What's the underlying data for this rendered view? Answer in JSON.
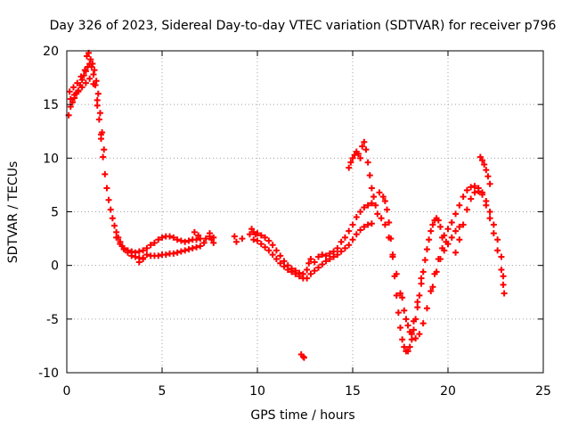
{
  "chart_data": {
    "type": "scatter",
    "title": "Day 326 of 2023, Sidereal Day-to-day VTEC variation (SDTVAR) for receiver p796",
    "xlabel": "GPS time / hours",
    "ylabel": "SDTVAR / TECUs",
    "xlim": [
      0,
      25
    ],
    "ylim": [
      -10,
      20
    ],
    "xticks": [
      0,
      5,
      10,
      15,
      20,
      25
    ],
    "yticks": [
      -10,
      -5,
      0,
      5,
      10,
      15,
      20
    ],
    "xtick_labels": [
      "0",
      "5",
      "10",
      "15",
      "20",
      "25"
    ],
    "ytick_labels": [
      "-10",
      "-5",
      "0",
      "5",
      "10",
      "15",
      "20"
    ],
    "grid": true,
    "marker": "+",
    "series": [
      {
        "name": "p796",
        "color": "#ff0000",
        "points": [
          [
            0.1,
            14.0
          ],
          [
            0.2,
            14.8
          ],
          [
            0.3,
            15.2
          ],
          [
            0.4,
            15.6
          ],
          [
            0.5,
            16.0
          ],
          [
            0.6,
            16.3
          ],
          [
            0.7,
            16.8
          ],
          [
            0.8,
            17.3
          ],
          [
            0.9,
            17.7
          ],
          [
            1.0,
            18.1
          ],
          [
            1.1,
            18.5
          ],
          [
            1.2,
            18.8
          ],
          [
            1.3,
            18.5
          ],
          [
            1.4,
            17.8
          ],
          [
            1.5,
            16.8
          ],
          [
            1.6,
            15.4
          ],
          [
            1.7,
            13.6
          ],
          [
            1.8,
            11.8
          ],
          [
            1.9,
            10.1
          ],
          [
            2.0,
            8.5
          ],
          [
            2.1,
            7.2
          ],
          [
            2.2,
            6.1
          ],
          [
            2.3,
            5.2
          ],
          [
            2.4,
            4.4
          ],
          [
            2.5,
            3.7
          ],
          [
            2.6,
            3.1
          ],
          [
            2.7,
            2.6
          ],
          [
            2.8,
            2.2
          ],
          [
            2.9,
            1.8
          ],
          [
            3.0,
            1.5
          ],
          [
            3.2,
            1.2
          ],
          [
            3.4,
            0.9
          ],
          [
            3.6,
            0.8
          ],
          [
            3.8,
            0.7
          ],
          [
            4.0,
            0.7
          ],
          [
            0.15,
            16.2
          ],
          [
            0.35,
            16.6
          ],
          [
            0.55,
            17.0
          ],
          [
            0.75,
            17.6
          ],
          [
            0.95,
            18.2
          ],
          [
            1.05,
            19.5
          ],
          [
            1.15,
            19.8
          ],
          [
            1.25,
            19.2
          ],
          [
            1.35,
            18.8
          ],
          [
            1.45,
            18.2
          ],
          [
            1.55,
            17.2
          ],
          [
            1.65,
            16.0
          ],
          [
            1.75,
            14.2
          ],
          [
            1.85,
            12.4
          ],
          [
            1.95,
            10.8
          ],
          [
            0.2,
            15.5
          ],
          [
            0.4,
            15.9
          ],
          [
            0.6,
            16.2
          ],
          [
            0.8,
            16.6
          ],
          [
            1.0,
            17.0
          ],
          [
            1.2,
            17.4
          ],
          [
            1.4,
            16.9
          ],
          [
            1.6,
            14.9
          ],
          [
            1.8,
            12.2
          ],
          [
            2.6,
            2.6
          ],
          [
            2.8,
            2.0
          ],
          [
            3.0,
            1.6
          ],
          [
            3.2,
            1.4
          ],
          [
            3.4,
            1.3
          ],
          [
            3.6,
            1.2
          ],
          [
            3.8,
            1.3
          ],
          [
            4.0,
            1.4
          ],
          [
            3.8,
            0.3
          ],
          [
            4.0,
            0.6
          ],
          [
            4.2,
            1.0
          ],
          [
            4.4,
            0.9
          ],
          [
            4.6,
            0.9
          ],
          [
            4.8,
            0.9
          ],
          [
            5.0,
            1.0
          ],
          [
            5.2,
            1.0
          ],
          [
            5.4,
            1.1
          ],
          [
            5.6,
            1.1
          ],
          [
            5.8,
            1.2
          ],
          [
            6.0,
            1.3
          ],
          [
            6.2,
            1.4
          ],
          [
            6.4,
            1.5
          ],
          [
            6.6,
            1.6
          ],
          [
            6.8,
            1.7
          ],
          [
            7.0,
            1.8
          ],
          [
            7.2,
            2.1
          ],
          [
            4.2,
            1.6
          ],
          [
            4.4,
            1.9
          ],
          [
            4.6,
            2.1
          ],
          [
            4.8,
            2.4
          ],
          [
            5.0,
            2.6
          ],
          [
            5.2,
            2.7
          ],
          [
            5.4,
            2.7
          ],
          [
            5.6,
            2.6
          ],
          [
            5.8,
            2.4
          ],
          [
            6.0,
            2.3
          ],
          [
            6.2,
            2.2
          ],
          [
            6.4,
            2.3
          ],
          [
            6.6,
            2.4
          ],
          [
            6.8,
            2.4
          ],
          [
            7.0,
            2.5
          ],
          [
            6.7,
            3.1
          ],
          [
            6.9,
            2.8
          ],
          [
            7.3,
            2.5
          ],
          [
            7.5,
            2.7
          ],
          [
            7.6,
            2.4
          ],
          [
            7.7,
            2.6
          ],
          [
            7.5,
            3.0
          ],
          [
            7.7,
            2.1
          ],
          [
            8.8,
            2.7
          ],
          [
            8.9,
            2.2
          ],
          [
            9.2,
            2.5
          ],
          [
            9.6,
            2.9
          ],
          [
            9.7,
            3.4
          ],
          [
            9.8,
            3.1
          ],
          [
            9.9,
            2.9
          ],
          [
            10.0,
            3.0
          ],
          [
            10.2,
            2.8
          ],
          [
            10.4,
            2.6
          ],
          [
            10.6,
            2.3
          ],
          [
            10.8,
            1.9
          ],
          [
            11.0,
            1.4
          ],
          [
            11.2,
            0.9
          ],
          [
            11.4,
            0.4
          ],
          [
            11.6,
            0.0
          ],
          [
            11.8,
            -0.3
          ],
          [
            12.0,
            -0.5
          ],
          [
            12.2,
            -0.7
          ],
          [
            12.4,
            -0.8
          ],
          [
            9.8,
            2.4
          ],
          [
            10.0,
            2.3
          ],
          [
            10.2,
            2.0
          ],
          [
            10.4,
            1.7
          ],
          [
            10.6,
            1.4
          ],
          [
            10.8,
            1.0
          ],
          [
            11.0,
            0.6
          ],
          [
            11.2,
            0.2
          ],
          [
            11.4,
            -0.1
          ],
          [
            11.6,
            -0.4
          ],
          [
            11.8,
            -0.6
          ],
          [
            12.0,
            -0.8
          ],
          [
            12.2,
            -1.0
          ],
          [
            12.4,
            -1.2
          ],
          [
            12.6,
            -1.2
          ],
          [
            12.3,
            -8.3
          ],
          [
            12.4,
            -8.5
          ],
          [
            12.45,
            -8.6
          ],
          [
            12.6,
            -0.4
          ],
          [
            12.7,
            0.2
          ],
          [
            12.8,
            0.6
          ],
          [
            13.0,
            0.3
          ],
          [
            13.2,
            0.8
          ],
          [
            13.4,
            1.0
          ],
          [
            13.6,
            0.9
          ],
          [
            13.8,
            1.1
          ],
          [
            14.0,
            1.3
          ],
          [
            14.2,
            1.6
          ],
          [
            12.8,
            -0.8
          ],
          [
            13.0,
            -0.5
          ],
          [
            13.2,
            -0.2
          ],
          [
            13.4,
            0.1
          ],
          [
            13.6,
            0.4
          ],
          [
            13.8,
            0.6
          ],
          [
            14.0,
            0.8
          ],
          [
            14.2,
            1.0
          ],
          [
            14.4,
            1.3
          ],
          [
            14.6,
            1.6
          ],
          [
            14.4,
            2.2
          ],
          [
            14.6,
            2.6
          ],
          [
            14.8,
            3.2
          ],
          [
            15.0,
            3.8
          ],
          [
            15.2,
            4.5
          ],
          [
            15.4,
            5.0
          ],
          [
            15.6,
            5.4
          ],
          [
            15.8,
            5.6
          ],
          [
            16.0,
            5.8
          ],
          [
            16.2,
            5.6
          ],
          [
            14.8,
            1.9
          ],
          [
            15.0,
            2.4
          ],
          [
            15.2,
            2.9
          ],
          [
            15.4,
            3.3
          ],
          [
            15.6,
            3.6
          ],
          [
            15.8,
            3.8
          ],
          [
            16.0,
            3.9
          ],
          [
            14.8,
            9.1
          ],
          [
            14.9,
            9.6
          ],
          [
            15.0,
            10.0
          ],
          [
            15.1,
            10.3
          ],
          [
            15.2,
            10.6
          ],
          [
            15.3,
            10.4
          ],
          [
            15.4,
            10.0
          ],
          [
            15.5,
            11.1
          ],
          [
            15.6,
            11.5
          ],
          [
            15.7,
            10.8
          ],
          [
            15.8,
            9.6
          ],
          [
            15.9,
            8.4
          ],
          [
            16.0,
            7.2
          ],
          [
            16.1,
            6.4
          ],
          [
            16.4,
            6.8
          ],
          [
            16.6,
            6.4
          ],
          [
            16.7,
            6.0
          ],
          [
            16.8,
            5.2
          ],
          [
            16.9,
            4.0
          ],
          [
            17.0,
            2.5
          ],
          [
            17.1,
            0.8
          ],
          [
            17.2,
            -1.0
          ],
          [
            17.3,
            -2.8
          ],
          [
            17.4,
            -4.4
          ],
          [
            17.5,
            -5.8
          ],
          [
            17.6,
            -6.9
          ],
          [
            17.7,
            -7.6
          ],
          [
            17.8,
            -8.0
          ],
          [
            17.9,
            -8.0
          ],
          [
            18.0,
            -7.6
          ],
          [
            18.1,
            -6.9
          ],
          [
            18.2,
            -6.0
          ],
          [
            18.3,
            -5.0
          ],
          [
            18.4,
            -3.9
          ],
          [
            18.5,
            -2.8
          ],
          [
            18.6,
            -1.7
          ],
          [
            18.7,
            -0.6
          ],
          [
            18.8,
            0.5
          ],
          [
            18.9,
            1.5
          ],
          [
            19.0,
            2.4
          ],
          [
            19.1,
            3.2
          ],
          [
            19.2,
            3.8
          ],
          [
            19.3,
            4.2
          ],
          [
            19.4,
            4.4
          ],
          [
            19.5,
            4.2
          ],
          [
            19.6,
            3.6
          ],
          [
            19.7,
            2.6
          ],
          [
            16.3,
            4.8
          ],
          [
            16.5,
            4.4
          ],
          [
            16.7,
            3.8
          ],
          [
            16.9,
            2.6
          ],
          [
            17.1,
            1.0
          ],
          [
            17.3,
            -0.8
          ],
          [
            17.5,
            -2.6
          ],
          [
            17.7,
            -4.2
          ],
          [
            17.9,
            -5.6
          ],
          [
            18.1,
            -6.4
          ],
          [
            18.3,
            -6.8
          ],
          [
            18.5,
            -6.4
          ],
          [
            18.7,
            -5.4
          ],
          [
            18.9,
            -4.0
          ],
          [
            19.1,
            -2.4
          ],
          [
            19.3,
            -0.8
          ],
          [
            19.5,
            0.6
          ],
          [
            19.7,
            1.6
          ],
          [
            19.9,
            2.2
          ],
          [
            17.6,
            -3.0
          ],
          [
            17.8,
            -5.0
          ],
          [
            18.0,
            -6.2
          ],
          [
            18.2,
            -5.2
          ],
          [
            18.4,
            -3.4
          ],
          [
            18.6,
            -1.2
          ],
          [
            19.2,
            -2.0
          ],
          [
            19.4,
            -0.6
          ],
          [
            19.6,
            0.6
          ],
          [
            19.8,
            1.4
          ],
          [
            20.0,
            2.0
          ],
          [
            20.2,
            2.6
          ],
          [
            20.4,
            3.2
          ],
          [
            20.6,
            3.6
          ],
          [
            19.8,
            2.8
          ],
          [
            20.0,
            3.4
          ],
          [
            20.2,
            4.0
          ],
          [
            20.4,
            4.8
          ],
          [
            20.6,
            5.6
          ],
          [
            20.8,
            6.4
          ],
          [
            21.0,
            7.0
          ],
          [
            21.2,
            7.3
          ],
          [
            21.4,
            7.4
          ],
          [
            21.6,
            7.2
          ],
          [
            21.8,
            6.8
          ],
          [
            22.0,
            6.0
          ],
          [
            22.2,
            5.0
          ],
          [
            22.4,
            3.8
          ],
          [
            22.6,
            2.4
          ],
          [
            22.8,
            0.8
          ],
          [
            22.9,
            -1.0
          ],
          [
            22.95,
            -2.6
          ],
          [
            20.4,
            1.2
          ],
          [
            20.6,
            2.4
          ],
          [
            20.8,
            3.8
          ],
          [
            21.0,
            5.2
          ],
          [
            21.2,
            6.2
          ],
          [
            21.4,
            6.8
          ],
          [
            21.6,
            6.9
          ],
          [
            21.8,
            6.6
          ],
          [
            22.0,
            5.6
          ],
          [
            22.2,
            4.4
          ],
          [
            22.4,
            3.0
          ],
          [
            22.6,
            1.4
          ],
          [
            22.8,
            -0.4
          ],
          [
            22.9,
            -1.8
          ],
          [
            21.7,
            10.1
          ],
          [
            21.8,
            9.8
          ],
          [
            21.9,
            9.4
          ],
          [
            22.0,
            8.9
          ],
          [
            22.1,
            8.3
          ],
          [
            22.2,
            7.6
          ]
        ]
      }
    ]
  }
}
